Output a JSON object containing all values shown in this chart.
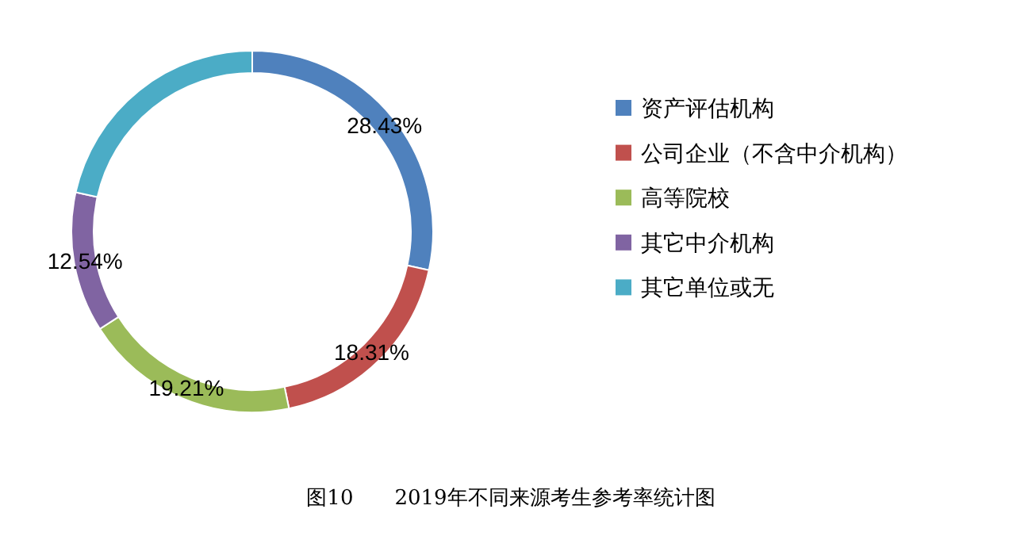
{
  "chart_data": {
    "type": "donut",
    "title": "图10　　2019年不同来源考生参考率统计图",
    "categories": [
      "资产评估机构",
      "公司企业（不含中介机构）",
      "高等院校",
      "其它中介机构",
      "其它单位或无"
    ],
    "values": [
      28.43,
      18.31,
      19.21,
      12.54,
      21.51
    ],
    "value_labels": [
      "28.43%",
      "18.31%",
      "19.21%",
      "12.54%",
      null
    ],
    "colors": [
      "#4f81bd",
      "#c0504d",
      "#9bbb59",
      "#8064a2",
      "#4bacc6"
    ],
    "legend": "right"
  }
}
